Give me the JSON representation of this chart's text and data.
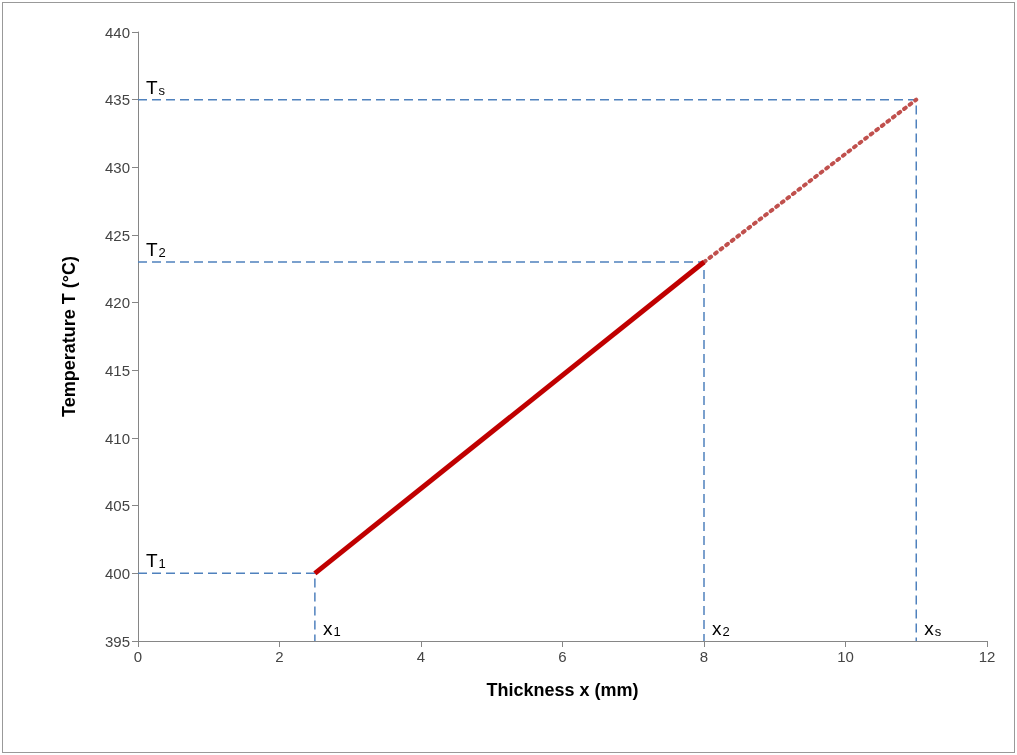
{
  "chart_data": {
    "type": "line",
    "xlabel": "Thickness x (mm)",
    "ylabel": "Temperature T (°C)",
    "xlim": [
      0,
      12
    ],
    "xticks": [
      0,
      2,
      4,
      6,
      8,
      10,
      12
    ],
    "ylim": [
      395,
      440
    ],
    "yticks": [
      395,
      400,
      405,
      410,
      415,
      420,
      425,
      430,
      435,
      440
    ],
    "grid": false,
    "marker": "none",
    "series": [
      {
        "color": "#4f81bd",
        "line_style": "dashed",
        "x": [
          0,
          2.5,
          2.5
        ],
        "values": [
          400,
          400,
          395
        ]
      },
      {
        "color": "#4f81bd",
        "line_style": "dashed",
        "x": [
          0,
          8,
          8
        ],
        "values": [
          423,
          423,
          395
        ]
      },
      {
        "color": "#4f81bd",
        "line_style": "dashed",
        "x": [
          0,
          11,
          11
        ],
        "values": [
          435,
          435,
          395
        ]
      },
      {
        "color": "#c0504d",
        "line_style": "dotted",
        "x": [
          8,
          11
        ],
        "values": [
          423,
          435
        ]
      },
      {
        "color": "#c00000",
        "line_style": "solid",
        "x": [
          2.5,
          8
        ],
        "values": [
          400,
          423
        ]
      }
    ],
    "annotations": [
      {
        "text": "T$_{1}$",
        "x": 0,
        "y": 400
      },
      {
        "text": "T$_{2}$",
        "x": 0,
        "y": 423
      },
      {
        "text": "T$_{s}$",
        "x": 0,
        "y": 435
      },
      {
        "text": "x$_{1}$",
        "x": 2.5,
        "y": 395
      },
      {
        "text": "x$_{2}$",
        "x": 8,
        "y": 395
      },
      {
        "text": "x$_{s}$",
        "x": 11,
        "y": 395
      }
    ]
  }
}
